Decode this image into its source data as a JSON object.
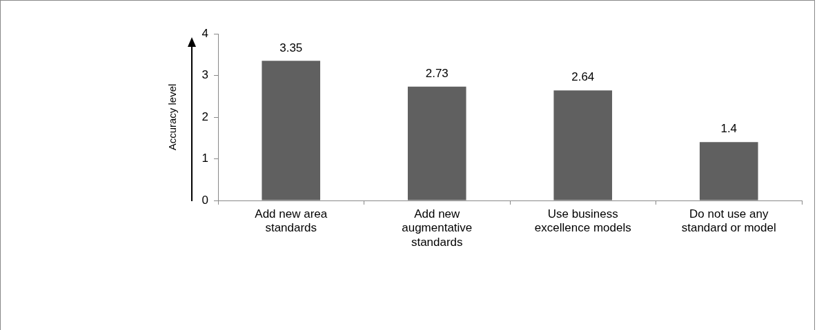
{
  "chart_data": {
    "type": "bar",
    "ylabel": "Accuracy level",
    "categories": [
      "Add new area standards",
      "Add new augmentative standards",
      "Use business excellence models",
      "Do not use any standard or model"
    ],
    "values": [
      3.35,
      2.73,
      2.64,
      1.4
    ],
    "color": "#606060",
    "ylim": [
      0,
      4
    ],
    "yticks": [
      0,
      1,
      2,
      3,
      4
    ],
    "grid": false,
    "legend": false,
    "data_labels": true
  }
}
